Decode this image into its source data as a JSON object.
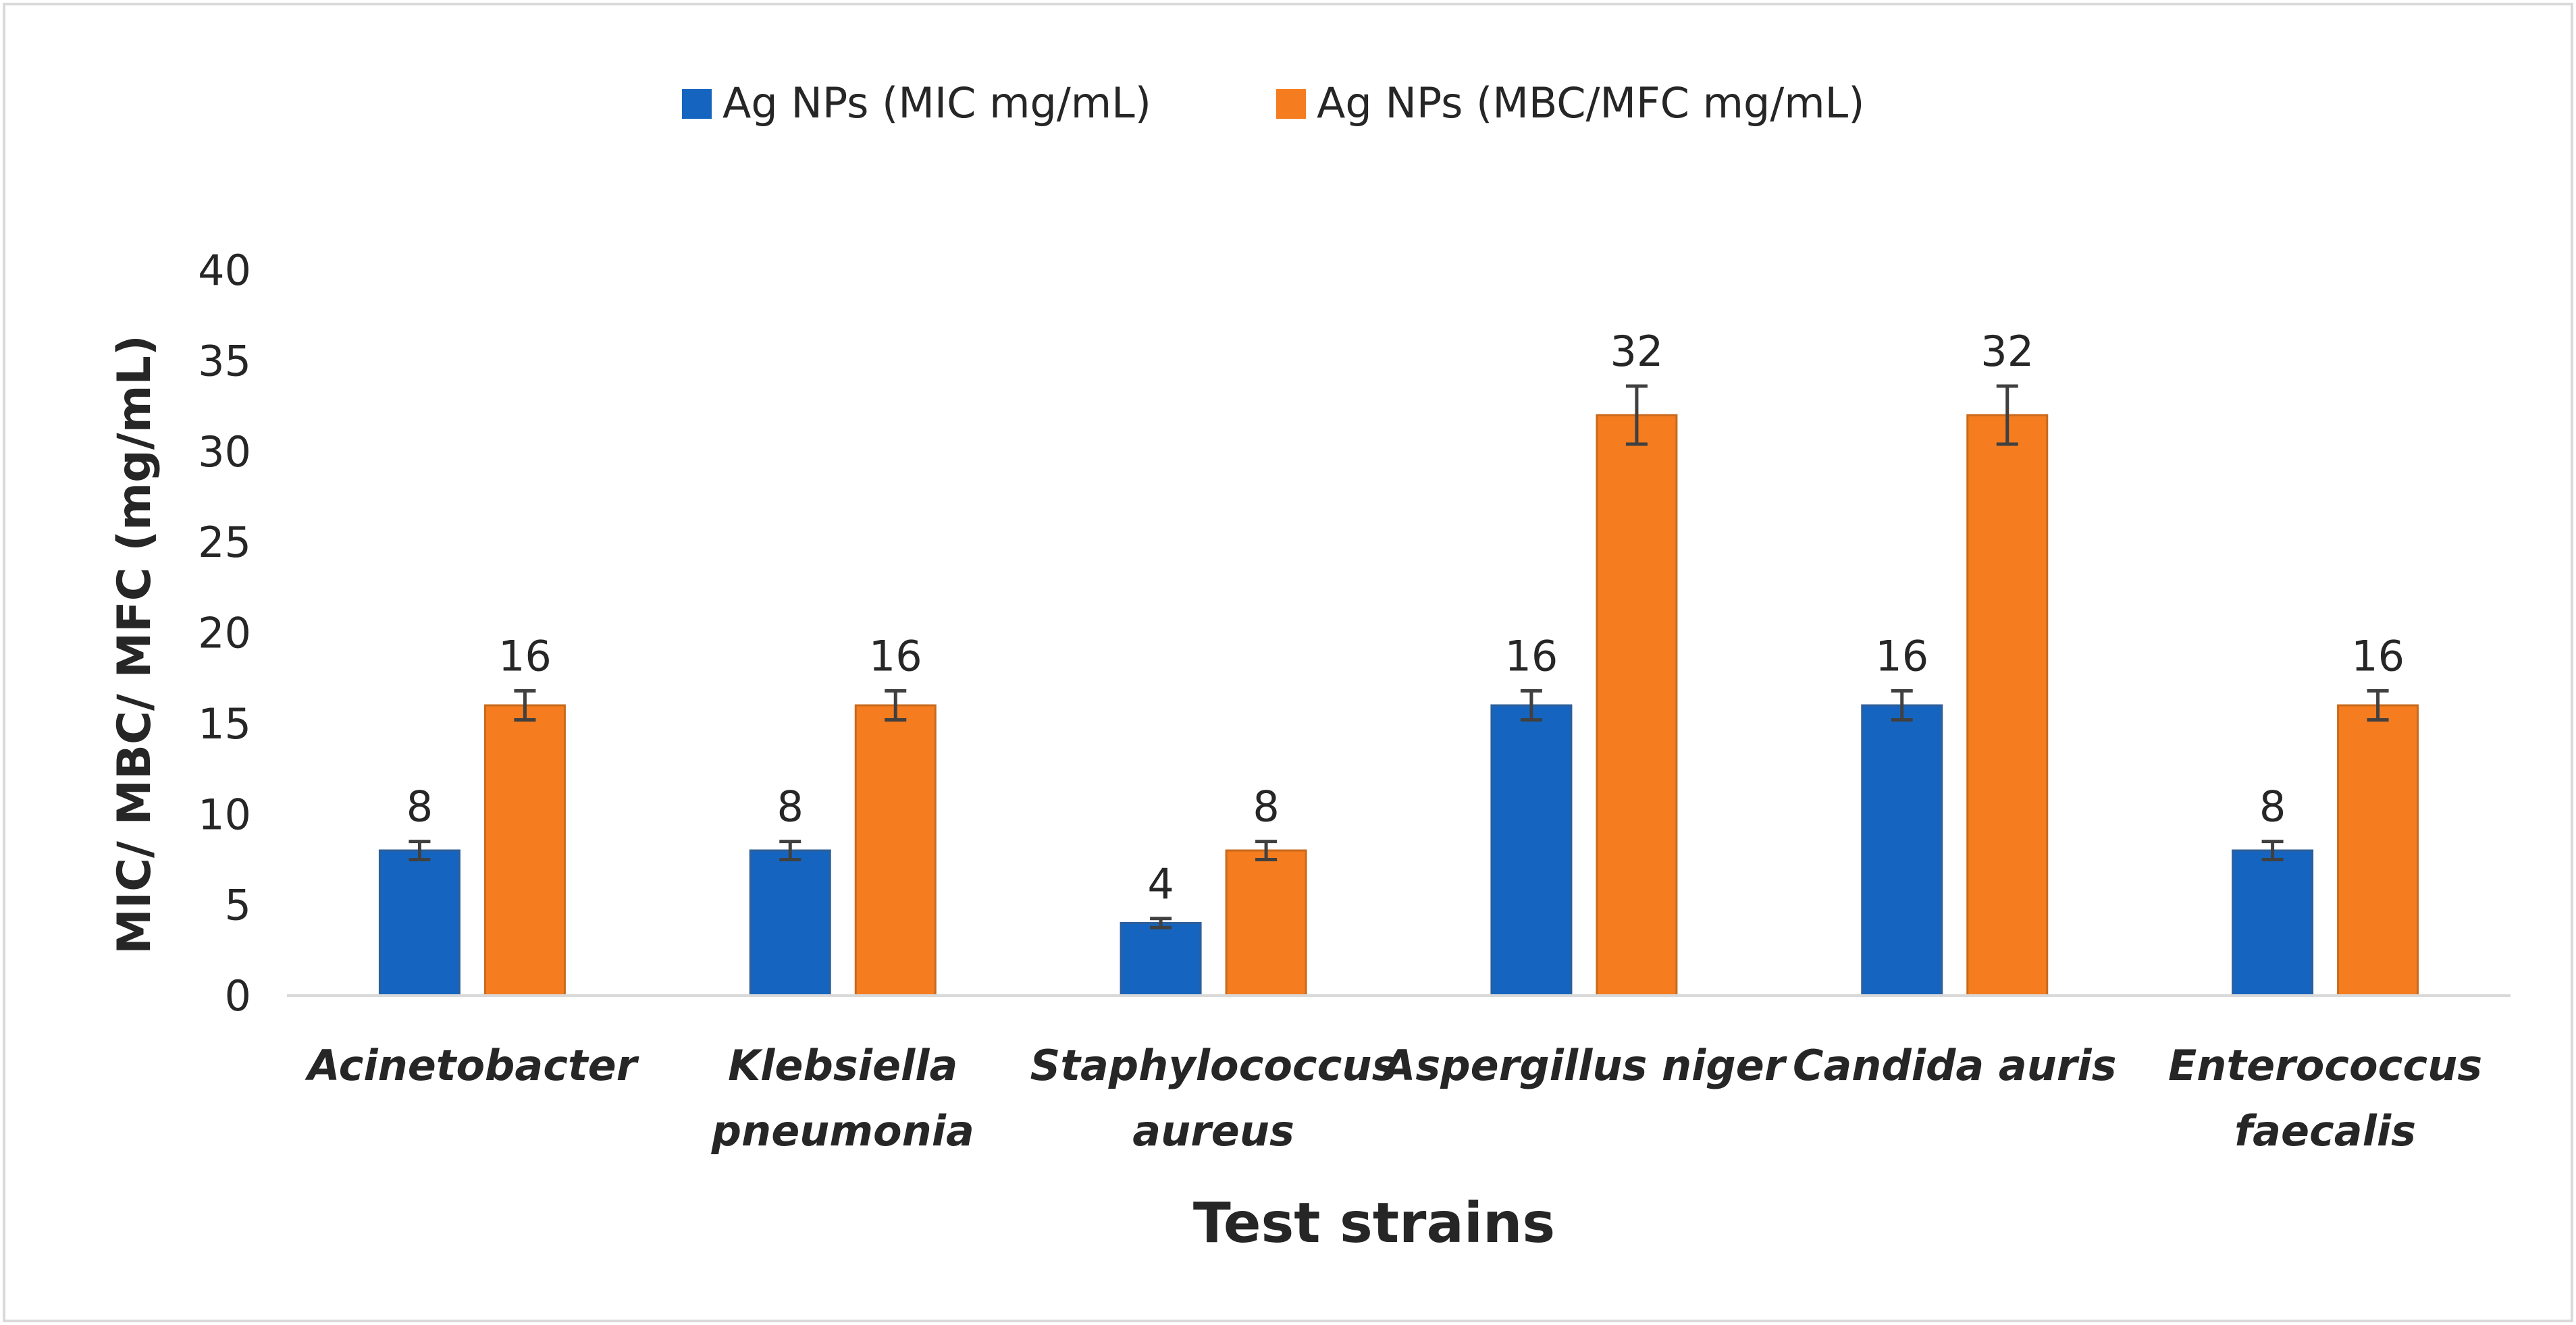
{
  "chart_data": {
    "type": "bar",
    "title": "",
    "xlabel": "Test strains",
    "ylabel": "MIC/ MBC/ MFC (mg/mL)",
    "ylim": [
      0,
      40
    ],
    "yticks": [
      0,
      5,
      10,
      15,
      20,
      25,
      30,
      35,
      40
    ],
    "grid": false,
    "legend_position": "top-center",
    "categories": [
      [
        "Acinetobacter"
      ],
      [
        "Klebsiella",
        "pneumonia"
      ],
      [
        "Staphylococcus",
        "aureus"
      ],
      [
        "Aspergillus niger"
      ],
      [
        "Candida auris"
      ],
      [
        "Enterococcus",
        "faecalis"
      ]
    ],
    "series": [
      {
        "name": "Ag NPs (MIC mg/mL)",
        "color": "#1565C0",
        "values": [
          8,
          8,
          4,
          16,
          16,
          8
        ],
        "error": [
          0.5,
          0.5,
          0.25,
          0.8,
          0.8,
          0.5
        ]
      },
      {
        "name": "Ag NPs (MBC/MFC mg/mL)",
        "color": "#F57C1F",
        "values": [
          16,
          16,
          8,
          32,
          32,
          16
        ],
        "error": [
          0.8,
          0.8,
          0.5,
          1.6,
          1.6,
          0.8
        ]
      }
    ]
  }
}
